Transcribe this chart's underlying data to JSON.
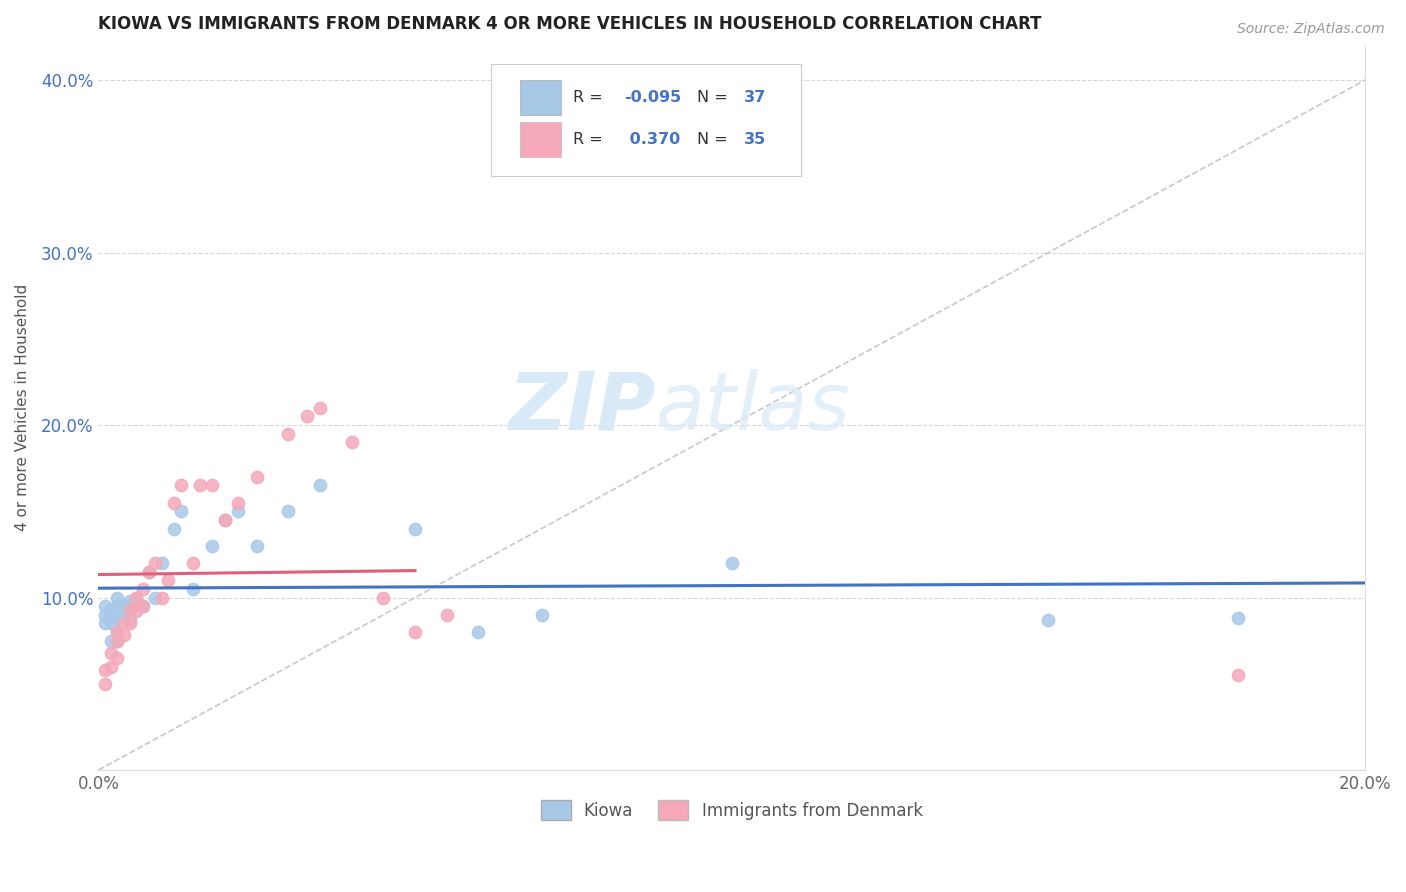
{
  "title": "KIOWA VS IMMIGRANTS FROM DENMARK 4 OR MORE VEHICLES IN HOUSEHOLD CORRELATION CHART",
  "source": "Source: ZipAtlas.com",
  "ylabel": "4 or more Vehicles in Household",
  "xlim": [
    0.0,
    0.2
  ],
  "ylim": [
    0.0,
    0.42
  ],
  "xtick_vals": [
    0.0,
    0.05,
    0.1,
    0.15,
    0.2
  ],
  "xtick_labels": [
    "0.0%",
    "",
    "",
    "",
    "20.0%"
  ],
  "ytick_vals": [
    0.0,
    0.1,
    0.2,
    0.3,
    0.4
  ],
  "ytick_labels": [
    "",
    "10.0%",
    "20.0%",
    "30.0%",
    "40.0%"
  ],
  "legend_labels": [
    "Kiowa",
    "Immigrants from Denmark"
  ],
  "kiowa_color": "#a8c8e8",
  "denmark_color": "#f4a8b8",
  "kiowa_line_color": "#4472c4",
  "denmark_line_color": "#e0607a",
  "diag_color": "#c8c8c8",
  "watermark_color": "#d8eaf8",
  "R_kiowa": -0.095,
  "N_kiowa": 37,
  "R_denmark": 0.37,
  "N_denmark": 35,
  "kiowa_x": [
    0.001,
    0.001,
    0.001,
    0.002,
    0.002,
    0.002,
    0.002,
    0.003,
    0.003,
    0.003,
    0.003,
    0.003,
    0.004,
    0.004,
    0.005,
    0.005,
    0.005,
    0.006,
    0.007,
    0.008,
    0.009,
    0.01,
    0.012,
    0.013,
    0.015,
    0.018,
    0.02,
    0.022,
    0.025,
    0.03,
    0.035,
    0.05,
    0.06,
    0.07,
    0.1,
    0.15,
    0.18
  ],
  "kiowa_y": [
    0.095,
    0.09,
    0.085,
    0.093,
    0.09,
    0.085,
    0.075,
    0.1,
    0.095,
    0.088,
    0.08,
    0.075,
    0.095,
    0.09,
    0.098,
    0.093,
    0.087,
    0.1,
    0.095,
    0.115,
    0.1,
    0.12,
    0.14,
    0.15,
    0.105,
    0.13,
    0.145,
    0.15,
    0.13,
    0.15,
    0.165,
    0.14,
    0.08,
    0.09,
    0.12,
    0.087,
    0.088
  ],
  "denmark_x": [
    0.001,
    0.001,
    0.002,
    0.002,
    0.003,
    0.003,
    0.003,
    0.004,
    0.004,
    0.005,
    0.005,
    0.006,
    0.006,
    0.007,
    0.007,
    0.008,
    0.009,
    0.01,
    0.011,
    0.012,
    0.013,
    0.015,
    0.016,
    0.018,
    0.02,
    0.022,
    0.025,
    0.03,
    0.033,
    0.035,
    0.04,
    0.045,
    0.05,
    0.055,
    0.18
  ],
  "denmark_y": [
    0.058,
    0.05,
    0.068,
    0.06,
    0.08,
    0.075,
    0.065,
    0.085,
    0.078,
    0.093,
    0.085,
    0.1,
    0.092,
    0.105,
    0.095,
    0.115,
    0.12,
    0.1,
    0.11,
    0.155,
    0.165,
    0.12,
    0.165,
    0.165,
    0.145,
    0.155,
    0.17,
    0.195,
    0.205,
    0.21,
    0.19,
    0.1,
    0.08,
    0.09,
    0.055
  ],
  "background_color": "#ffffff",
  "grid_color": "#d8d8d8"
}
